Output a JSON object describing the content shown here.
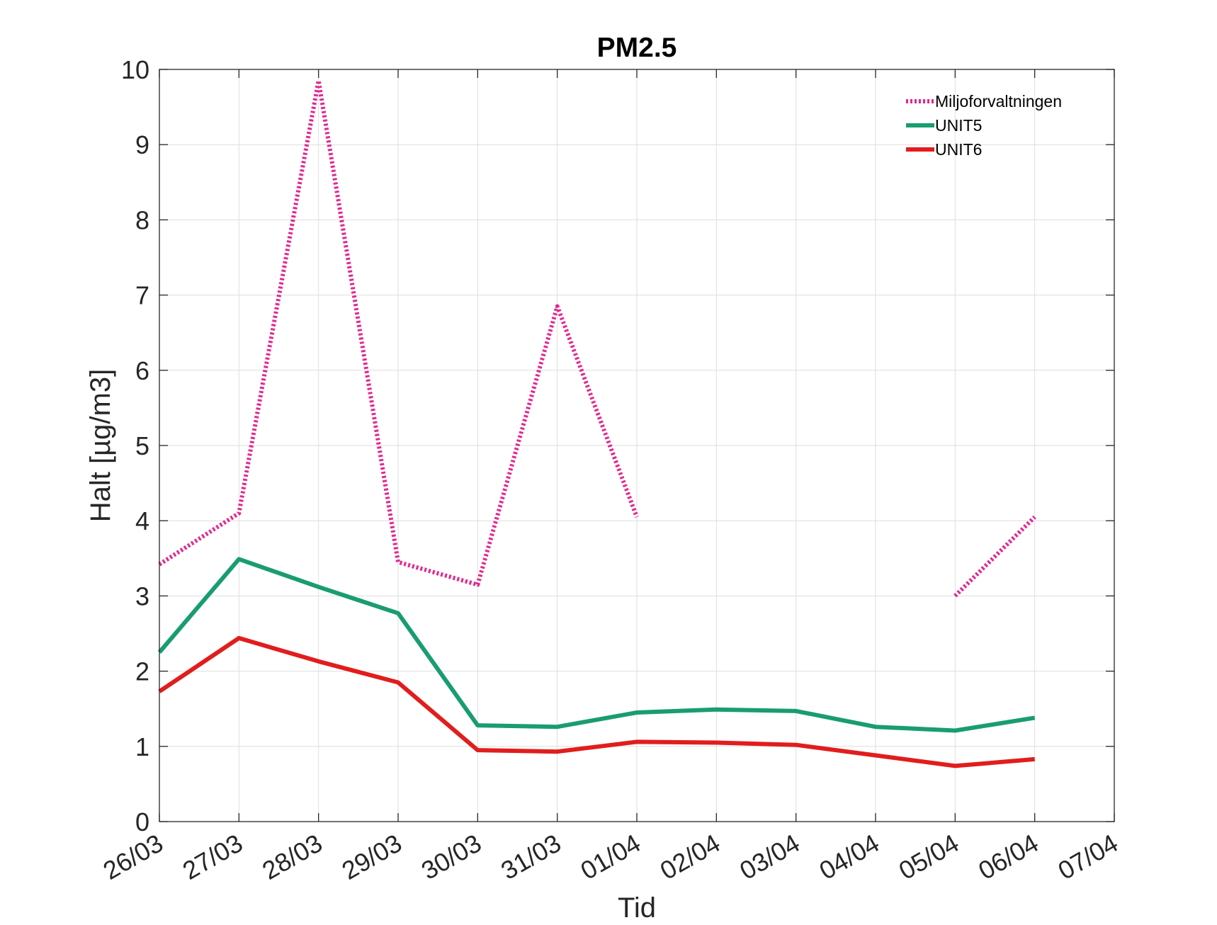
{
  "chart_data": {
    "type": "line",
    "title": "PM2.5",
    "xlabel": "Tid",
    "ylabel": "Halt [µg/m3]",
    "categories": [
      "26/03",
      "27/03",
      "28/03",
      "29/03",
      "30/03",
      "31/03",
      "01/04",
      "02/04",
      "03/04",
      "04/04",
      "05/04",
      "06/04",
      "07/04"
    ],
    "ylim": [
      0,
      10
    ],
    "yticks": [
      "0",
      "1",
      "2",
      "3",
      "4",
      "5",
      "6",
      "7",
      "8",
      "9",
      "10"
    ],
    "grid": true,
    "legend_position": "top-right",
    "series": [
      {
        "name": "Miljoforvaltningen",
        "style": "dotted",
        "color": "#e2288f",
        "values": [
          3.42,
          4.1,
          9.85,
          3.45,
          3.15,
          6.85,
          4.05,
          null,
          null,
          null,
          3.0,
          4.05,
          null
        ]
      },
      {
        "name": "UNIT5",
        "style": "solid",
        "color": "#1a9c73",
        "values": [
          2.25,
          3.49,
          3.12,
          2.77,
          1.28,
          1.26,
          1.45,
          1.49,
          1.47,
          1.26,
          1.21,
          1.38,
          null
        ]
      },
      {
        "name": "UNIT6",
        "style": "solid",
        "color": "#e11d1d",
        "values": [
          1.73,
          2.44,
          2.13,
          1.85,
          0.95,
          0.93,
          1.06,
          1.05,
          1.02,
          0.88,
          0.74,
          0.83,
          null
        ]
      }
    ]
  }
}
